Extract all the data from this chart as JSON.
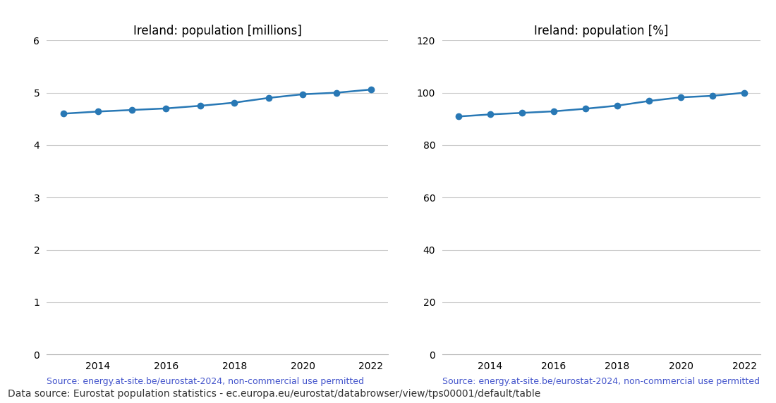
{
  "years": [
    2013,
    2014,
    2015,
    2016,
    2017,
    2018,
    2019,
    2020,
    2021,
    2022
  ],
  "millions": [
    4.6,
    4.64,
    4.67,
    4.7,
    4.75,
    4.81,
    4.9,
    4.97,
    5.0,
    5.06
  ],
  "title_left": "Ireland: population [millions]",
  "title_right": "Ireland: population [%]",
  "ylim_left": [
    0,
    6
  ],
  "ylim_right": [
    0,
    120
  ],
  "yticks_left": [
    0,
    1,
    2,
    3,
    4,
    5,
    6
  ],
  "yticks_right": [
    0,
    20,
    40,
    60,
    80,
    100,
    120
  ],
  "xlim": [
    2012.5,
    2022.5
  ],
  "xticks": [
    2014,
    2016,
    2018,
    2020,
    2022
  ],
  "line_color": "#2878b5",
  "marker": "o",
  "marker_size": 6,
  "line_width": 1.8,
  "source_text": "Source: energy.at-site.be/eurostat-2024, non-commercial use permitted",
  "source_color": "#4455cc",
  "footer_text": "Data source: Eurostat population statistics - ec.europa.eu/eurostat/databrowser/view/tps00001/default/table",
  "footer_color": "#333333",
  "grid_color": "#cccccc",
  "background_color": "#ffffff",
  "title_fontsize": 12,
  "tick_fontsize": 10,
  "source_fontsize": 9,
  "footer_fontsize": 10
}
